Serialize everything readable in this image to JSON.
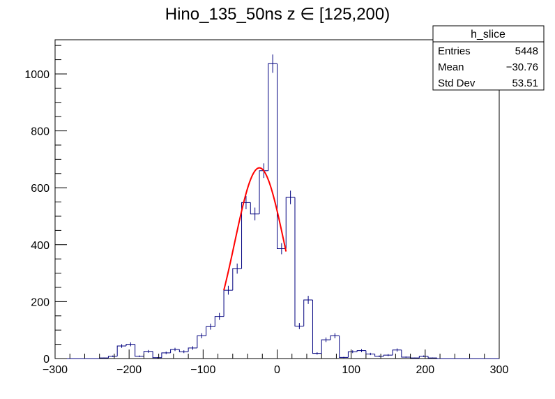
{
  "chart_data": {
    "type": "bar",
    "title": "Hino_135_50ns z  ∈ [125,200)",
    "xlabel": "",
    "ylabel": "",
    "xlim": [
      -300,
      300
    ],
    "ylim": [
      0,
      1120
    ],
    "bin_width": 12,
    "grid": false,
    "x_ticks": [
      "−300",
      "−200",
      "−100",
      "0",
      "100",
      "200",
      "300"
    ],
    "y_ticks": [
      "0",
      "200",
      "400",
      "600",
      "800",
      "1000"
    ],
    "series": [
      {
        "bin_lows": [
          -300,
          -288,
          -276,
          -264,
          -252,
          -240,
          -228,
          -216,
          -204,
          -192,
          -180,
          -168,
          -156,
          -144,
          -132,
          -120,
          -108,
          -96,
          -84,
          -72,
          -60,
          -48,
          -36,
          -24,
          -12,
          0,
          12,
          24,
          36,
          48,
          60,
          72,
          84,
          96,
          108,
          120,
          132,
          144,
          156,
          168,
          180,
          192,
          204,
          216,
          228,
          240,
          252,
          264,
          276,
          288
        ],
        "values": [
          0,
          0,
          0,
          0,
          0,
          2,
          8,
          44,
          50,
          8,
          25,
          3,
          20,
          32,
          24,
          37,
          80,
          112,
          148,
          240,
          316,
          548,
          508,
          660,
          1036,
          386,
          566,
          114,
          206,
          18,
          66,
          80,
          4,
          24,
          28,
          16,
          8,
          12,
          30,
          5,
          2,
          8,
          2,
          0,
          0,
          0,
          0,
          0,
          0,
          0
        ],
        "errors": [
          0,
          0,
          0,
          0,
          0,
          1.4,
          2.8,
          6.6,
          7.1,
          2.8,
          5,
          1.7,
          4.5,
          5.7,
          4.9,
          6.1,
          8.9,
          10.6,
          12.2,
          15.5,
          17.8,
          23.4,
          22.5,
          25.7,
          32.2,
          19.6,
          23.8,
          10.7,
          14.4,
          4.2,
          8.1,
          8.9,
          2,
          4.9,
          5.3,
          4,
          2.8,
          3.5,
          5.5,
          2.2,
          1.4,
          2.8,
          1.4,
          0,
          0,
          0,
          0,
          0,
          0,
          0
        ]
      }
    ],
    "fit": {
      "type": "gaus",
      "constant": 670,
      "mean": -24,
      "sigma": 33.5,
      "range": [
        -72,
        12
      ]
    },
    "stats": {
      "name": "h_slice",
      "rows": [
        {
          "label": "Entries",
          "value": "5448"
        },
        {
          "label": "Mean",
          "value": "−30.76"
        },
        {
          "label": "Std Dev",
          "value": "53.51"
        }
      ]
    },
    "colors": {
      "histogram": "#00007f",
      "fit": "#ff0000"
    }
  }
}
